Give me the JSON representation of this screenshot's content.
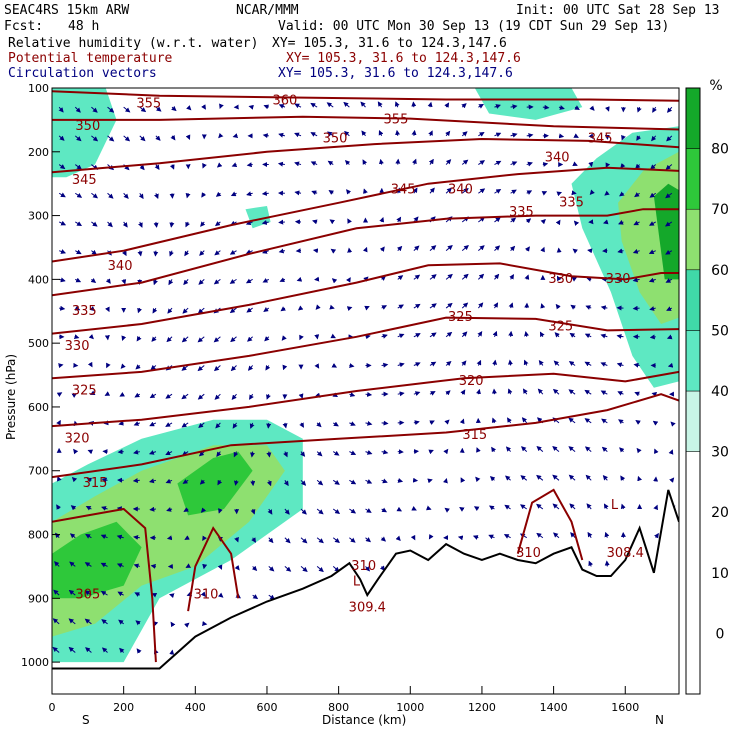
{
  "header": {
    "model": "SEAC4RS 15km ARW",
    "org": "NCAR/MMM",
    "init": "Init: 00 UTC Sat 28 Sep 13",
    "fcst_label": "Fcst:",
    "fcst_value": "48 h",
    "valid": "Valid: 00 UTC Mon 30 Sep 13 (19 CDT Sun 29 Sep 13)",
    "fields": [
      {
        "name": "Relative humidity (w.r.t. water)",
        "xy": "XY= 105.3, 31.6 to 124.3,147.6",
        "color": "#000000"
      },
      {
        "name": "Potential temperature",
        "xy": "XY= 105.3, 31.6 to 124.3,147.6",
        "color": "#8b0000"
      },
      {
        "name": "Circulation vectors",
        "xy": "XY= 105.3, 31.6 to 124.3,147.6",
        "color": "#000080"
      }
    ]
  },
  "chart_data": {
    "type": "cross-section",
    "xlabel": "Distance (km)",
    "ylabel": "Pressure (hPa)",
    "xlim": [
      0,
      1750
    ],
    "ylim": [
      1050,
      100
    ],
    "xticks": [
      0,
      200,
      400,
      600,
      800,
      1000,
      1200,
      1400,
      1600
    ],
    "yticks": [
      100,
      200,
      300,
      400,
      500,
      600,
      700,
      800,
      900,
      1000
    ],
    "x_end_labels": {
      "left": "S",
      "right": "N"
    },
    "colorbar": {
      "unit": "%",
      "ticks": [
        0,
        10,
        20,
        30,
        40,
        50,
        60,
        70,
        80
      ],
      "range": [
        -10,
        90
      ],
      "bands": [
        {
          "from": -10,
          "to": 30,
          "color": "#ffffff"
        },
        {
          "from": 30,
          "to": 40,
          "color": "#c8f5e6"
        },
        {
          "from": 40,
          "to": 50,
          "color": "#5ee8c2"
        },
        {
          "from": 50,
          "to": 60,
          "color": "#40d9a8"
        },
        {
          "from": 60,
          "to": 70,
          "color": "#8ee070"
        },
        {
          "from": 70,
          "to": 80,
          "color": "#2ec83a"
        },
        {
          "from": 80,
          "to": 90,
          "color": "#14a82a"
        }
      ]
    },
    "theta_contours": [
      {
        "value": 355,
        "label": "355",
        "points": [
          [
            0,
            105
          ],
          [
            300,
            112
          ],
          [
            700,
            115
          ],
          [
            1100,
            118
          ],
          [
            1500,
            118
          ],
          [
            1750,
            120
          ]
        ]
      },
      {
        "value": 350,
        "label": "350",
        "points": [
          [
            0,
            150
          ],
          [
            300,
            150
          ],
          [
            700,
            145
          ],
          [
            1000,
            148
          ],
          [
            1400,
            160
          ],
          [
            1750,
            165
          ]
        ]
      },
      {
        "value": 345,
        "label": "345",
        "points": [
          [
            0,
            232
          ],
          [
            300,
            218
          ],
          [
            600,
            200
          ],
          [
            900,
            188
          ],
          [
            1200,
            180
          ],
          [
            1500,
            183
          ],
          [
            1750,
            193
          ]
        ]
      },
      {
        "value": 340,
        "label": "340",
        "points": [
          [
            0,
            372
          ],
          [
            200,
            355
          ],
          [
            500,
            315
          ],
          [
            800,
            280
          ],
          [
            1050,
            250
          ],
          [
            1300,
            235
          ],
          [
            1550,
            225
          ],
          [
            1750,
            230
          ]
        ]
      },
      {
        "value": 335,
        "label": "335",
        "points": [
          [
            0,
            425
          ],
          [
            250,
            405
          ],
          [
            550,
            360
          ],
          [
            850,
            320
          ],
          [
            1100,
            305
          ],
          [
            1350,
            300
          ],
          [
            1550,
            300
          ],
          [
            1650,
            290
          ],
          [
            1750,
            290
          ]
        ]
      },
      {
        "value": 330,
        "label": "330",
        "points": [
          [
            0,
            485
          ],
          [
            250,
            470
          ],
          [
            550,
            440
          ],
          [
            850,
            405
          ],
          [
            1050,
            378
          ],
          [
            1250,
            375
          ],
          [
            1450,
            395
          ],
          [
            1600,
            400
          ],
          [
            1700,
            390
          ],
          [
            1750,
            390
          ]
        ]
      },
      {
        "value": 325,
        "label": "325",
        "points": [
          [
            0,
            555
          ],
          [
            250,
            545
          ],
          [
            550,
            520
          ],
          [
            850,
            490
          ],
          [
            1100,
            460
          ],
          [
            1350,
            462
          ],
          [
            1550,
            480
          ],
          [
            1750,
            478
          ]
        ]
      },
      {
        "value": 320,
        "label": "320",
        "points": [
          [
            0,
            630
          ],
          [
            250,
            620
          ],
          [
            550,
            600
          ],
          [
            850,
            575
          ],
          [
            1150,
            555
          ],
          [
            1400,
            548
          ],
          [
            1600,
            560
          ],
          [
            1750,
            545
          ]
        ]
      },
      {
        "value": 315,
        "label": "315",
        "points": [
          [
            0,
            710
          ],
          [
            250,
            690
          ],
          [
            500,
            660
          ],
          [
            800,
            650
          ],
          [
            1100,
            640
          ],
          [
            1350,
            625
          ],
          [
            1550,
            605
          ],
          [
            1700,
            580
          ],
          [
            1750,
            590
          ]
        ]
      },
      {
        "value": 310,
        "label": "310",
        "points": [
          [
            380,
            920
          ],
          [
            400,
            850
          ],
          [
            450,
            790
          ],
          [
            500,
            830
          ],
          [
            520,
            900
          ]
        ]
      },
      {
        "value": 310,
        "label": "310",
        "points": [
          [
            1300,
            830
          ],
          [
            1340,
            750
          ],
          [
            1400,
            730
          ],
          [
            1450,
            780
          ],
          [
            1480,
            840
          ]
        ]
      },
      {
        "value": 305,
        "label": "305",
        "points": [
          [
            0,
            780
          ],
          [
            100,
            770
          ],
          [
            200,
            760
          ],
          [
            260,
            790
          ],
          [
            280,
            900
          ],
          [
            290,
            1000
          ]
        ]
      }
    ],
    "theta_labels": [
      {
        "text": "360",
        "x": 650,
        "p": 120
      },
      {
        "text": "355",
        "x": 270,
        "p": 125
      },
      {
        "text": "355",
        "x": 960,
        "p": 150
      },
      {
        "text": "350",
        "x": 100,
        "p": 160
      },
      {
        "text": "350",
        "x": 790,
        "p": 180
      },
      {
        "text": "345",
        "x": 90,
        "p": 245
      },
      {
        "text": "345",
        "x": 980,
        "p": 260
      },
      {
        "text": "345",
        "x": 1530,
        "p": 180
      },
      {
        "text": "340",
        "x": 190,
        "p": 380
      },
      {
        "text": "340",
        "x": 1140,
        "p": 260
      },
      {
        "text": "340",
        "x": 1410,
        "p": 210
      },
      {
        "text": "335",
        "x": 90,
        "p": 450
      },
      {
        "text": "335",
        "x": 1310,
        "p": 295
      },
      {
        "text": "335",
        "x": 1450,
        "p": 280
      },
      {
        "text": "330",
        "x": 70,
        "p": 505
      },
      {
        "text": "330",
        "x": 1420,
        "p": 400
      },
      {
        "text": "330",
        "x": 1580,
        "p": 400
      },
      {
        "text": "325",
        "x": 90,
        "p": 575
      },
      {
        "text": "325",
        "x": 1140,
        "p": 460
      },
      {
        "text": "325",
        "x": 1420,
        "p": 475
      },
      {
        "text": "320",
        "x": 70,
        "p": 650
      },
      {
        "text": "320",
        "x": 1170,
        "p": 560
      },
      {
        "text": "315",
        "x": 120,
        "p": 720
      },
      {
        "text": "315",
        "x": 1180,
        "p": 645
      },
      {
        "text": "310",
        "x": 870,
        "p": 850
      },
      {
        "text": "310",
        "x": 1330,
        "p": 830
      },
      {
        "text": "310",
        "x": 430,
        "p": 895
      },
      {
        "text": "308.4",
        "x": 1600,
        "p": 830
      },
      {
        "text": "305",
        "x": 100,
        "p": 895
      },
      {
        "text": "309.4",
        "x": 880,
        "p": 915
      }
    ],
    "low_markers": [
      {
        "text": "L",
        "x": 850,
        "p": 880
      },
      {
        "text": "L",
        "x": 1570,
        "p": 760
      }
    ],
    "terrain": [
      [
        0,
        1010
      ],
      [
        300,
        1010
      ],
      [
        400,
        960
      ],
      [
        500,
        930
      ],
      [
        600,
        905
      ],
      [
        700,
        885
      ],
      [
        780,
        865
      ],
      [
        830,
        845
      ],
      [
        860,
        870
      ],
      [
        880,
        895
      ],
      [
        910,
        870
      ],
      [
        960,
        830
      ],
      [
        1000,
        825
      ],
      [
        1050,
        840
      ],
      [
        1100,
        815
      ],
      [
        1150,
        830
      ],
      [
        1200,
        840
      ],
      [
        1250,
        830
      ],
      [
        1300,
        840
      ],
      [
        1350,
        845
      ],
      [
        1400,
        830
      ],
      [
        1450,
        820
      ],
      [
        1480,
        855
      ],
      [
        1520,
        865
      ],
      [
        1560,
        865
      ],
      [
        1600,
        840
      ],
      [
        1640,
        790
      ],
      [
        1680,
        860
      ],
      [
        1720,
        730
      ],
      [
        1750,
        780
      ]
    ],
    "humid_regions": [
      {
        "level": 40,
        "points": [
          [
            0,
            720
          ],
          [
            100,
            690
          ],
          [
            250,
            650
          ],
          [
            450,
            620
          ],
          [
            600,
            620
          ],
          [
            700,
            650
          ],
          [
            700,
            760
          ],
          [
            500,
            840
          ],
          [
            300,
            900
          ],
          [
            200,
            1000
          ],
          [
            0,
            1000
          ]
        ]
      },
      {
        "level": 60,
        "points": [
          [
            0,
            780
          ],
          [
            120,
            740
          ],
          [
            250,
            700
          ],
          [
            450,
            660
          ],
          [
            600,
            660
          ],
          [
            650,
            700
          ],
          [
            550,
            780
          ],
          [
            400,
            850
          ],
          [
            250,
            880
          ],
          [
            120,
            940
          ],
          [
            0,
            960
          ]
        ]
      },
      {
        "level": 70,
        "points": [
          [
            0,
            830
          ],
          [
            80,
            800
          ],
          [
            180,
            780
          ],
          [
            250,
            820
          ],
          [
            200,
            880
          ],
          [
            80,
            900
          ],
          [
            0,
            900
          ]
        ]
      },
      {
        "level": 70,
        "points": [
          [
            350,
            720
          ],
          [
            450,
            680
          ],
          [
            520,
            670
          ],
          [
            560,
            700
          ],
          [
            480,
            760
          ],
          [
            380,
            770
          ]
        ]
      },
      {
        "level": 40,
        "points": [
          [
            1450,
            250
          ],
          [
            1520,
            210
          ],
          [
            1620,
            170
          ],
          [
            1750,
            160
          ],
          [
            1750,
            560
          ],
          [
            1680,
            570
          ],
          [
            1620,
            520
          ],
          [
            1560,
            420
          ],
          [
            1480,
            320
          ]
        ]
      },
      {
        "level": 60,
        "points": [
          [
            1580,
            280
          ],
          [
            1650,
            230
          ],
          [
            1750,
            200
          ],
          [
            1750,
            460
          ],
          [
            1700,
            470
          ],
          [
            1640,
            420
          ],
          [
            1590,
            340
          ]
        ]
      },
      {
        "level": 80,
        "points": [
          [
            1680,
            270
          ],
          [
            1720,
            250
          ],
          [
            1750,
            260
          ],
          [
            1750,
            400
          ],
          [
            1710,
            400
          ]
        ]
      },
      {
        "level": 40,
        "points": [
          [
            0,
            100
          ],
          [
            150,
            100
          ],
          [
            180,
            150
          ],
          [
            120,
            220
          ],
          [
            40,
            240
          ],
          [
            0,
            240
          ]
        ]
      },
      {
        "level": 40,
        "points": [
          [
            1180,
            100
          ],
          [
            1450,
            100
          ],
          [
            1480,
            130
          ],
          [
            1350,
            150
          ],
          [
            1220,
            140
          ]
        ]
      },
      {
        "level": 40,
        "points": [
          [
            540,
            290
          ],
          [
            600,
            285
          ],
          [
            610,
            310
          ],
          [
            560,
            320
          ]
        ]
      }
    ]
  }
}
